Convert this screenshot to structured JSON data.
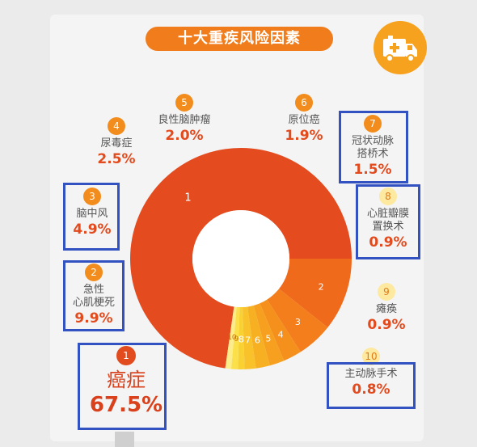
{
  "title": "十大重疾风险因素",
  "icons": {
    "ambulance": "ambulance-icon"
  },
  "colors": {
    "accent": "#f07c1b",
    "highlight_box": "#3152c0",
    "main": "#e24b1e"
  },
  "chart_data": {
    "type": "pie",
    "title": "十大重疾风险因素",
    "categories": [
      "癌症",
      "急性心肌梗死",
      "脑中风",
      "尿毒症",
      "良性脑肿瘤",
      "原位癌",
      "冠状动脉搭桥术",
      "心脏瓣膜置换术",
      "瘫痪",
      "主动脉手术"
    ],
    "series": [
      {
        "values": [
          67.5,
          9.9,
          4.9,
          2.5,
          2.0,
          1.9,
          1.5,
          0.9,
          0.9,
          0.8
        ]
      }
    ],
    "slice_numbers": [
      "1",
      "2",
      "3",
      "4",
      "5",
      "6",
      "7",
      "8",
      "9",
      "10"
    ],
    "slice_colors": [
      "#e44b1f",
      "#f06a1c",
      "#f37e1b",
      "#f5901d",
      "#f7a01f",
      "#f8b023",
      "#f9c22a",
      "#fad132",
      "#fbe04a",
      "#fdec8a"
    ],
    "labels": [
      {
        "num": "1",
        "name": "癌症",
        "pct": "67.5%"
      },
      {
        "num": "2",
        "name": "急性\n心肌梗死",
        "pct": "9.9%"
      },
      {
        "num": "3",
        "name": "脑中风",
        "pct": "4.9%"
      },
      {
        "num": "4",
        "name": "尿毒症",
        "pct": "2.5%"
      },
      {
        "num": "5",
        "name": "良性脑肿瘤",
        "pct": "2.0%"
      },
      {
        "num": "6",
        "name": "原位癌",
        "pct": "1.9%"
      },
      {
        "num": "7",
        "name": "冠状动脉\n搭桥术",
        "pct": "1.5%"
      },
      {
        "num": "8",
        "name": "心脏瓣膜\n置换术",
        "pct": "0.9%"
      },
      {
        "num": "9",
        "name": "瘫痪",
        "pct": "0.9%"
      },
      {
        "num": "10",
        "name": "主动脉手术",
        "pct": "0.8%"
      }
    ]
  }
}
